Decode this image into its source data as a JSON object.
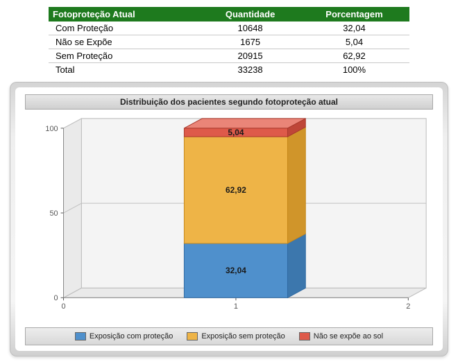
{
  "table": {
    "header_bg": "#1e7a1e",
    "header_text_color": "#ffffff",
    "columns": [
      "Fotoproteção Atual",
      "Quantidade",
      "Porcentagem"
    ],
    "rows": [
      {
        "label": "Com Proteção",
        "qty": "10648",
        "pct": "32,04"
      },
      {
        "label": "Não se Expõe",
        "qty": "1675",
        "pct": "5,04"
      },
      {
        "label": "Sem Proteção",
        "qty": "20915",
        "pct": "62,92"
      }
    ],
    "total": {
      "label": "Total",
      "qty": "33238",
      "pct": "100%"
    }
  },
  "chart": {
    "type": "stacked-bar-3d",
    "title": "Distribuição dos pacientes segundo fotoproteção atual",
    "title_fontsize": 12,
    "background_color": "#ffffff",
    "panel_gradient": [
      "#d4d4d4",
      "#f5f5f5",
      "#cfcfcf"
    ],
    "plot_backwall_color": "#f4f4f4",
    "plot_floor_color": "#eaeaea",
    "grid_color": "#c0c0c0",
    "axis_label_color": "#555555",
    "xlim": [
      0,
      2
    ],
    "xticks": [
      0,
      1,
      2
    ],
    "ylim": [
      0,
      100
    ],
    "ytick_step": 50,
    "yticks": [
      0,
      50,
      100
    ],
    "bar_x": 1,
    "bar_width": 0.6,
    "depth_dx": 26,
    "depth_dy": -14,
    "segments": [
      {
        "key": "com",
        "value": 32.04,
        "label": "32,04",
        "fill": "#4f90cc",
        "stroke": "#2f6aa3",
        "top": "#7ab0e0",
        "side": "#3c77ad"
      },
      {
        "key": "sem",
        "value": 62.92,
        "label": "62,92",
        "fill": "#eeb447",
        "stroke": "#c7881b",
        "top": "#f5cd7c",
        "side": "#d0952a"
      },
      {
        "key": "nao",
        "value": 5.04,
        "label": "5,04",
        "fill": "#de5a4a",
        "stroke": "#a93a2d",
        "top": "#ea8578",
        "side": "#bf4638"
      }
    ],
    "legend": [
      {
        "label": "Exposição com proteção",
        "color": "#4f90cc"
      },
      {
        "label": "Exposição sem proteção",
        "color": "#eeb447"
      },
      {
        "label": "Não se expõe ao sol",
        "color": "#de5a4a"
      }
    ]
  }
}
